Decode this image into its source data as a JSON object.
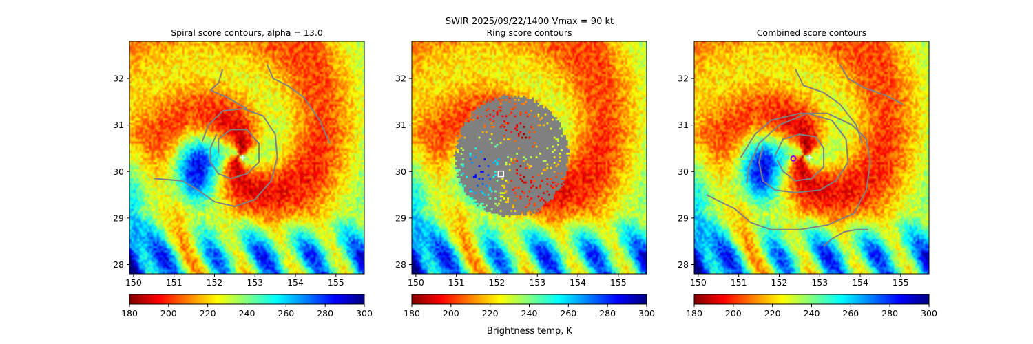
{
  "figure": {
    "suptitle": "SWIR  2025/09/22/1400    Vmax = 90 kt",
    "colorbar_label": "Brightness temp, K"
  },
  "colormap": {
    "name": "jet_r",
    "stops": [
      "#7f0000",
      "#ff0000",
      "#ff8000",
      "#ffff00",
      "#80ff80",
      "#00ffff",
      "#0080ff",
      "#0000ff",
      "#00007f"
    ]
  },
  "colors": {
    "contour": "#808080",
    "center_marker": "#ffffff",
    "combined_marker": "#9400d3"
  },
  "chart_data": [
    {
      "type": "heatmap",
      "title": "Spiral score contours, alpha = 13.0",
      "xlim": [
        149.9,
        155.7
      ],
      "ylim": [
        27.8,
        32.8
      ],
      "xticks": [
        150,
        151,
        152,
        153,
        154,
        155
      ],
      "yticks": [
        28,
        29,
        30,
        31,
        32
      ],
      "colorbar": {
        "min": 180,
        "max": 300,
        "ticks": [
          180,
          200,
          220,
          240,
          260,
          280,
          300
        ]
      },
      "markers": [
        {
          "kind": "plus",
          "x": 152.7,
          "y": 30.3
        }
      ],
      "contours": [
        [
          [
            152.1,
            30.4
          ],
          [
            152.1,
            30.7
          ],
          [
            152.4,
            30.9
          ],
          [
            152.8,
            30.9
          ],
          [
            153.1,
            30.6
          ],
          [
            153.1,
            30.2
          ],
          [
            152.8,
            29.95
          ],
          [
            152.4,
            29.85
          ],
          [
            152.1,
            29.95
          ],
          [
            151.9,
            30.2
          ],
          [
            151.9,
            30.5
          ],
          [
            152.05,
            30.8
          ]
        ],
        [
          [
            150.5,
            29.85
          ],
          [
            151.2,
            29.8
          ],
          [
            151.6,
            29.6
          ],
          [
            152.0,
            29.35
          ],
          [
            152.5,
            29.25
          ],
          [
            153.0,
            29.4
          ],
          [
            153.4,
            29.8
          ],
          [
            153.55,
            30.3
          ],
          [
            153.5,
            30.8
          ],
          [
            153.2,
            31.2
          ],
          [
            152.7,
            31.35
          ],
          [
            152.2,
            31.3
          ],
          [
            151.85,
            31.0
          ],
          [
            151.7,
            30.65
          ]
        ],
        [
          [
            152.2,
            32.2
          ],
          [
            152.1,
            31.9
          ],
          [
            151.9,
            31.75
          ],
          [
            152.3,
            31.6
          ],
          [
            152.8,
            31.35
          ]
        ],
        [
          [
            153.3,
            32.3
          ],
          [
            153.45,
            32.0
          ],
          [
            153.8,
            31.85
          ],
          [
            154.2,
            31.6
          ],
          [
            154.6,
            31.1
          ],
          [
            154.85,
            30.6
          ]
        ]
      ]
    },
    {
      "type": "heatmap",
      "title": "Ring score contours",
      "xlim": [
        149.9,
        155.7
      ],
      "ylim": [
        27.8,
        32.8
      ],
      "xticks": [
        150,
        151,
        152,
        153,
        154,
        155
      ],
      "yticks": [
        28,
        29,
        30,
        31,
        32
      ],
      "colorbar": {
        "min": 180,
        "max": 300,
        "ticks": [
          180,
          200,
          220,
          240,
          260,
          280,
          300
        ]
      },
      "markers": [
        {
          "kind": "square",
          "x": 152.1,
          "y": 29.95
        }
      ],
      "ring_region": {
        "center": [
          152.35,
          30.35
        ],
        "radius_x": 1.4,
        "radius_y": 1.3
      },
      "contours": []
    },
    {
      "type": "heatmap",
      "title": "Combined score contours",
      "xlim": [
        149.9,
        155.7
      ],
      "ylim": [
        27.8,
        32.8
      ],
      "xticks": [
        150,
        151,
        152,
        153,
        154,
        155
      ],
      "yticks": [
        28,
        29,
        30,
        31,
        32
      ],
      "colorbar": {
        "min": 180,
        "max": 300,
        "ticks": [
          180,
          200,
          220,
          240,
          260,
          280,
          300
        ]
      },
      "markers": [
        {
          "kind": "plus",
          "x": 152.75,
          "y": 30.3
        },
        {
          "kind": "circle",
          "x": 152.35,
          "y": 30.28
        }
      ],
      "contours": [
        [
          [
            151.9,
            30.35
          ],
          [
            152.1,
            30.7
          ],
          [
            152.5,
            30.8
          ],
          [
            152.9,
            30.75
          ],
          [
            153.1,
            30.5
          ],
          [
            153.1,
            30.1
          ],
          [
            152.8,
            29.85
          ],
          [
            152.4,
            29.8
          ],
          [
            152.1,
            30.0
          ],
          [
            151.95,
            30.25
          ]
        ],
        [
          [
            151.2,
            29.75
          ],
          [
            151.25,
            30.1
          ],
          [
            151.5,
            30.6
          ],
          [
            152.0,
            31.0
          ],
          [
            152.7,
            31.25
          ],
          [
            153.3,
            31.1
          ],
          [
            153.65,
            30.7
          ],
          [
            153.7,
            30.2
          ],
          [
            153.4,
            29.8
          ],
          [
            153.0,
            29.6
          ],
          [
            152.4,
            29.55
          ],
          [
            151.9,
            29.6
          ],
          [
            151.6,
            29.8
          ],
          [
            151.5,
            30.2
          ],
          [
            151.6,
            30.55
          ]
        ],
        [
          [
            150.2,
            29.5
          ],
          [
            150.9,
            29.2
          ],
          [
            151.3,
            28.9
          ],
          [
            151.8,
            28.75
          ],
          [
            152.5,
            28.75
          ],
          [
            153.2,
            28.85
          ],
          [
            153.85,
            29.1
          ],
          [
            154.15,
            29.6
          ],
          [
            154.25,
            30.2
          ],
          [
            154.15,
            30.7
          ],
          [
            153.8,
            31.0
          ],
          [
            153.2,
            31.25
          ],
          [
            152.5,
            31.25
          ],
          [
            151.8,
            31.1
          ],
          [
            151.4,
            30.8
          ],
          [
            151.05,
            30.3
          ]
        ],
        [
          [
            152.4,
            32.2
          ],
          [
            152.6,
            31.85
          ],
          [
            153.1,
            31.7
          ],
          [
            153.5,
            31.45
          ],
          [
            153.9,
            31.0
          ],
          [
            154.05,
            30.6
          ]
        ],
        [
          [
            153.5,
            32.3
          ],
          [
            153.7,
            32.0
          ],
          [
            154.1,
            31.8
          ],
          [
            154.6,
            31.65
          ],
          [
            155.05,
            31.45
          ]
        ],
        [
          [
            153.1,
            28.4
          ],
          [
            153.3,
            28.55
          ],
          [
            153.6,
            28.7
          ],
          [
            153.9,
            28.75
          ],
          [
            154.2,
            28.75
          ]
        ]
      ]
    }
  ]
}
